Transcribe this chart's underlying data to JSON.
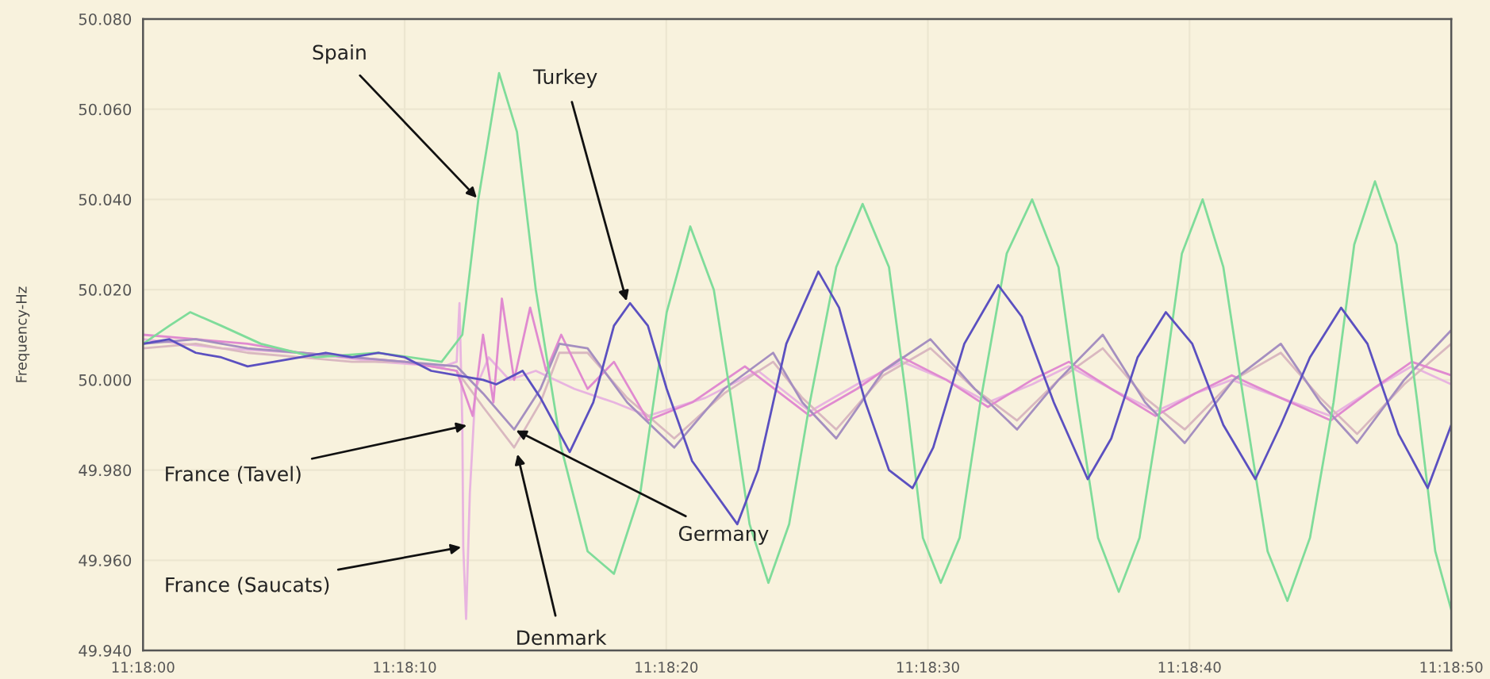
{
  "chart_data": {
    "type": "line",
    "ylabel": "Frequency-Hz",
    "xlim": [
      11.3,
      11.31389
    ],
    "xticks": [
      {
        "value": 11.3,
        "label": "11:18:00"
      },
      {
        "value": 11.302778,
        "label": "11:18:10"
      },
      {
        "value": 11.305556,
        "label": "11:18:20"
      },
      {
        "value": 11.308333,
        "label": "11:18:30"
      },
      {
        "value": 11.311111,
        "label": "11:18:40"
      },
      {
        "value": 11.31389,
        "label": "11:18:50"
      }
    ],
    "ylim": [
      49.94,
      50.08
    ],
    "yticks": [
      {
        "value": 49.94,
        "label": "49.940"
      },
      {
        "value": 49.96,
        "label": "49.960"
      },
      {
        "value": 49.98,
        "label": "49.980"
      },
      {
        "value": 50.0,
        "label": "50.000"
      },
      {
        "value": 50.02,
        "label": "50.020"
      },
      {
        "value": 50.04,
        "label": "50.040"
      },
      {
        "value": 50.06,
        "label": "50.060"
      },
      {
        "value": 50.08,
        "label": "50.080"
      }
    ],
    "grid": true,
    "legend": false,
    "marker": "none",
    "line_style": "solid",
    "series": [
      {
        "color": "#e8b4e0",
        "x": [
          11.3,
          11.30083,
          11.30167,
          11.3025,
          11.30319,
          11.30333,
          11.30336,
          11.30339,
          11.3034,
          11.30343,
          11.30347,
          11.30353,
          11.30367,
          11.30389,
          11.30417,
          11.30458,
          11.305,
          11.30536,
          11.30597,
          11.30653,
          11.30708,
          11.30758,
          11.30806,
          11.30853,
          11.30897,
          11.30944,
          11.30983,
          11.31028,
          11.31075,
          11.31117,
          11.31156,
          11.31208,
          11.31261,
          11.31306,
          11.31347,
          11.31389
        ],
        "values": [
          50.009,
          50.007,
          50.006,
          50.004,
          50.003,
          50.004,
          50.017,
          49.99,
          49.963,
          49.947,
          49.975,
          49.998,
          50.005,
          50.0,
          50.002,
          49.998,
          49.995,
          49.992,
          49.996,
          50.002,
          49.993,
          49.999,
          50.004,
          50.0,
          49.995,
          49.999,
          50.003,
          49.998,
          49.993,
          49.997,
          50.0,
          49.996,
          49.992,
          49.998,
          50.003,
          49.999
        ]
      },
      {
        "color": "#d9b8c0",
        "x": [
          11.3,
          11.30056,
          11.30111,
          11.30167,
          11.30222,
          11.30278,
          11.30333,
          11.30361,
          11.30394,
          11.30422,
          11.30442,
          11.30472,
          11.30514,
          11.30564,
          11.30617,
          11.30669,
          11.307,
          11.30736,
          11.30786,
          11.30836,
          11.30883,
          11.30928,
          11.30972,
          11.31019,
          11.31064,
          11.31106,
          11.31158,
          11.31208,
          11.3125,
          11.31289,
          11.31339,
          11.31389
        ],
        "values": [
          50.007,
          50.008,
          50.006,
          50.005,
          50.004,
          50.004,
          50.002,
          49.994,
          49.985,
          49.995,
          50.006,
          50.006,
          49.996,
          49.987,
          49.997,
          50.004,
          49.996,
          49.989,
          50.001,
          50.007,
          49.998,
          49.991,
          50.0,
          50.007,
          49.996,
          49.989,
          50.0,
          50.006,
          49.996,
          49.988,
          49.999,
          50.008
        ]
      },
      {
        "color": "#e08ad0",
        "x": [
          11.3,
          11.30056,
          11.30111,
          11.30167,
          11.30222,
          11.30278,
          11.30333,
          11.3035,
          11.30361,
          11.30372,
          11.30381,
          11.30394,
          11.30411,
          11.30428,
          11.30444,
          11.30472,
          11.305,
          11.30536,
          11.30583,
          11.30639,
          11.30708,
          11.30758,
          11.30806,
          11.30853,
          11.30897,
          11.30944,
          11.30983,
          11.31028,
          11.31075,
          11.31117,
          11.31156,
          11.31208,
          11.31261,
          11.31306,
          11.31347,
          11.31389
        ],
        "values": [
          50.01,
          50.009,
          50.008,
          50.006,
          50.005,
          50.004,
          50.002,
          49.992,
          50.01,
          49.995,
          50.018,
          50.0,
          50.016,
          50.002,
          50.01,
          49.998,
          50.004,
          49.991,
          49.995,
          50.003,
          49.992,
          49.998,
          50.005,
          50.0,
          49.994,
          50.0,
          50.004,
          49.998,
          49.992,
          49.997,
          50.001,
          49.996,
          49.991,
          49.998,
          50.004,
          50.001
        ]
      },
      {
        "color": "#a58fc0",
        "x": [
          11.3,
          11.30056,
          11.30111,
          11.30167,
          11.30222,
          11.30278,
          11.30333,
          11.30361,
          11.30394,
          11.30422,
          11.30442,
          11.30472,
          11.30514,
          11.30564,
          11.30617,
          11.30669,
          11.307,
          11.30736,
          11.30786,
          11.30836,
          11.30883,
          11.30928,
          11.30972,
          11.31019,
          11.31064,
          11.31106,
          11.31158,
          11.31208,
          11.3125,
          11.31289,
          11.31339,
          11.31389
        ],
        "values": [
          50.008,
          50.009,
          50.007,
          50.006,
          50.005,
          50.004,
          50.003,
          49.997,
          49.989,
          49.998,
          50.008,
          50.007,
          49.995,
          49.985,
          49.998,
          50.006,
          49.995,
          49.987,
          50.002,
          50.009,
          49.998,
          49.989,
          50.0,
          50.01,
          49.995,
          49.986,
          50.0,
          50.008,
          49.995,
          49.986,
          50.0,
          50.011
        ]
      },
      {
        "color": "#7fdc9a",
        "x": [
          11.3,
          11.30028,
          11.3005,
          11.30083,
          11.30125,
          11.30183,
          11.3025,
          11.30317,
          11.30339,
          11.30356,
          11.30378,
          11.30397,
          11.30417,
          11.30444,
          11.30472,
          11.305,
          11.30528,
          11.30556,
          11.30581,
          11.30606,
          11.30625,
          11.30644,
          11.30664,
          11.30686,
          11.30708,
          11.30736,
          11.30764,
          11.30792,
          11.30811,
          11.30828,
          11.30847,
          11.30867,
          11.30889,
          11.30917,
          11.30944,
          11.30972,
          11.30992,
          11.31014,
          11.31036,
          11.31058,
          11.31081,
          11.31103,
          11.31125,
          11.31147,
          11.31169,
          11.31194,
          11.31215,
          11.31239,
          11.31264,
          11.31286,
          11.31308,
          11.31331,
          11.31353,
          11.31372,
          11.31389
        ],
        "values": [
          50.008,
          50.012,
          50.015,
          50.012,
          50.008,
          50.005,
          50.006,
          50.004,
          50.01,
          50.04,
          50.068,
          50.055,
          50.02,
          49.985,
          49.962,
          49.957,
          49.975,
          50.015,
          50.034,
          50.02,
          49.995,
          49.968,
          49.955,
          49.968,
          49.995,
          50.025,
          50.039,
          50.025,
          49.995,
          49.965,
          49.955,
          49.965,
          49.995,
          50.028,
          50.04,
          50.025,
          49.995,
          49.965,
          49.953,
          49.965,
          49.995,
          50.028,
          50.04,
          50.025,
          49.995,
          49.962,
          49.951,
          49.965,
          49.995,
          50.03,
          50.044,
          50.03,
          49.995,
          49.962,
          49.949
        ]
      },
      {
        "color": "#5b50c0",
        "x": [
          11.3,
          11.30028,
          11.30056,
          11.30083,
          11.30111,
          11.30139,
          11.30167,
          11.30194,
          11.30222,
          11.3025,
          11.30278,
          11.30306,
          11.30333,
          11.30361,
          11.30375,
          11.30403,
          11.30422,
          11.30453,
          11.30478,
          11.305,
          11.30517,
          11.30536,
          11.30556,
          11.30583,
          11.30631,
          11.30653,
          11.30683,
          11.30717,
          11.30739,
          11.30767,
          11.30792,
          11.30817,
          11.30839,
          11.30872,
          11.30908,
          11.30933,
          11.30967,
          11.31003,
          11.31028,
          11.31056,
          11.31086,
          11.31114,
          11.31147,
          11.31181,
          11.31208,
          11.31239,
          11.31272,
          11.313,
          11.31333,
          11.31364,
          11.31389
        ],
        "values": [
          50.008,
          50.009,
          50.006,
          50.005,
          50.003,
          50.004,
          50.005,
          50.006,
          50.005,
          50.006,
          50.005,
          50.002,
          50.001,
          50.0,
          49.999,
          50.002,
          49.996,
          49.984,
          49.995,
          50.012,
          50.017,
          50.012,
          49.998,
          49.982,
          49.968,
          49.98,
          50.008,
          50.024,
          50.016,
          49.995,
          49.98,
          49.976,
          49.985,
          50.008,
          50.021,
          50.014,
          49.995,
          49.978,
          49.987,
          50.005,
          50.015,
          50.008,
          49.99,
          49.978,
          49.99,
          50.005,
          50.016,
          50.008,
          49.988,
          49.976,
          49.99
        ]
      }
    ],
    "annotations": [
      {
        "text": "Spain",
        "x": 11.30356,
        "y": 50.04
      },
      {
        "text": "Turkey",
        "x": 11.30514,
        "y": 50.017
      },
      {
        "text": "France (Tavel)",
        "x": 11.30346,
        "y": 49.99
      },
      {
        "text": "Germany",
        "x": 11.30394,
        "y": 49.989
      },
      {
        "text": "Denmark",
        "x": 11.30397,
        "y": 49.984
      },
      {
        "text": "France (Saucats)",
        "x": 11.3034,
        "y": 49.963
      }
    ]
  }
}
